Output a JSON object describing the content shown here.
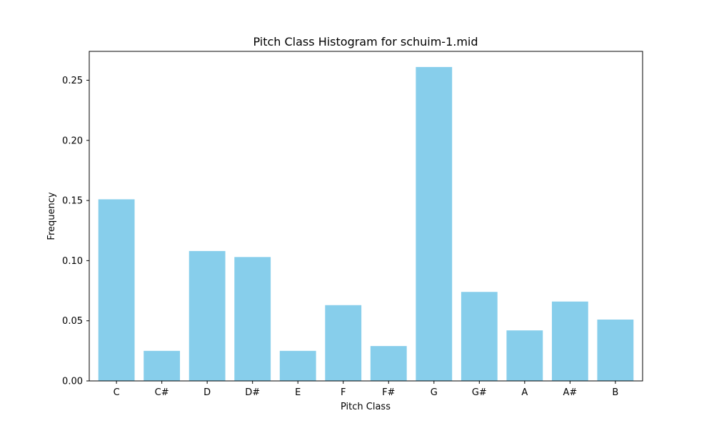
{
  "chart_data": {
    "type": "bar",
    "title": "Pitch Class Histogram for schuim-1.mid",
    "xlabel": "Pitch Class",
    "ylabel": "Frequency",
    "categories": [
      "C",
      "C#",
      "D",
      "D#",
      "E",
      "F",
      "F#",
      "G",
      "G#",
      "A",
      "A#",
      "B"
    ],
    "values": [
      0.151,
      0.025,
      0.108,
      0.103,
      0.025,
      0.063,
      0.029,
      0.261,
      0.074,
      0.042,
      0.066,
      0.051
    ],
    "ylim": [
      0,
      0.274
    ],
    "yticks": [
      0.0,
      0.05,
      0.1,
      0.15,
      0.2,
      0.25
    ],
    "ytick_labels": [
      "0.00",
      "0.05",
      "0.10",
      "0.15",
      "0.20",
      "0.25"
    ],
    "grid": false,
    "legend": "none",
    "bar_color": "#87ceeb"
  }
}
